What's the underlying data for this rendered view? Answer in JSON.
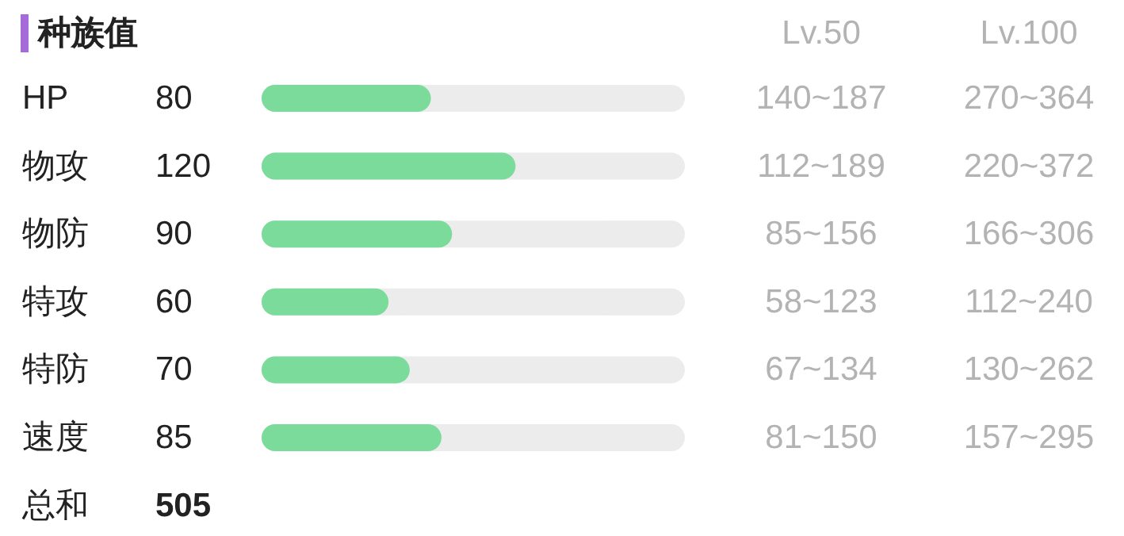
{
  "chart_data": {
    "type": "bar",
    "orientation": "horizontal",
    "title": "种族值",
    "categories": [
      "HP",
      "物攻",
      "物防",
      "特攻",
      "特防",
      "速度"
    ],
    "values": [
      80,
      120,
      90,
      60,
      70,
      85
    ],
    "color": "#7adb9b",
    "xlim": [
      0,
      200
    ],
    "data_labels": true,
    "annotations": [
      "Lv.50",
      "Lv.100",
      "140~187",
      "270~364",
      "112~189",
      "220~372",
      "85~156",
      "166~306",
      "58~123",
      "112~240",
      "67~134",
      "130~262",
      "81~150",
      "157~295",
      "总和",
      "505"
    ]
  }
}
